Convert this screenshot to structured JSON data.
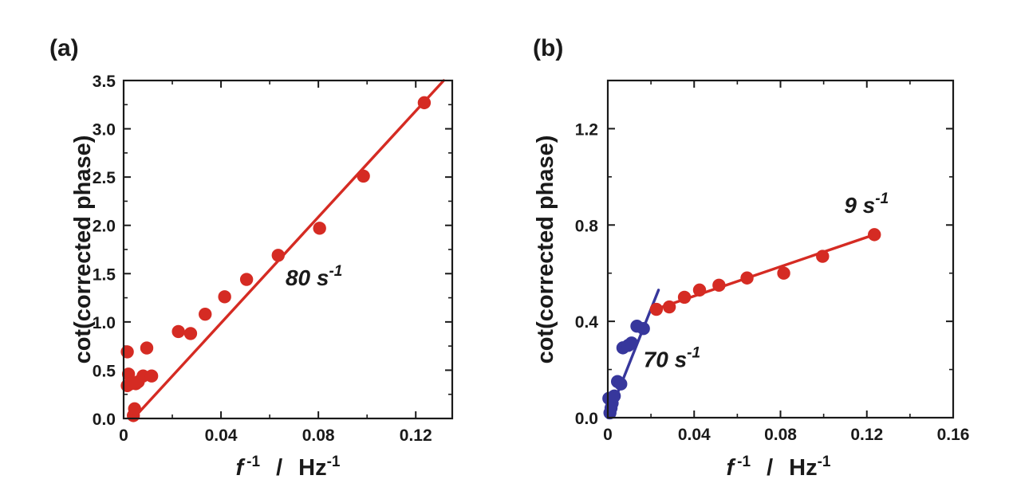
{
  "colors": {
    "red": "#d52b23",
    "blue": "#37379c",
    "axis": "#1a1a1a"
  },
  "chart_data": [
    {
      "type": "scatter",
      "panel_label": "(a)",
      "xlabel_main": "f",
      "xlabel_exp": "-1",
      "xlabel_sep": "/",
      "xlabel_unit": "Hz",
      "xlabel_unit_exp": "-1",
      "ylabel": "cot(corrected phase)",
      "xlim": [
        0,
        0.135
      ],
      "ylim": [
        0,
        3.5
      ],
      "xticks": [
        0,
        0.04,
        0.08,
        0.12
      ],
      "xtick_labels": [
        "0",
        "0.04",
        "0.08",
        "0.12"
      ],
      "yticks": [
        0,
        0.5,
        1.0,
        1.5,
        2.0,
        2.5,
        3.0,
        3.5
      ],
      "ytick_labels": [
        "0.0",
        "0.5",
        "1.0",
        "1.5",
        "2.0",
        "2.5",
        "3.0",
        "3.5"
      ],
      "series": [
        {
          "color": "#d52b23",
          "x": [
            0.0015,
            0.0015,
            0.002,
            0.003,
            0.004,
            0.0045,
            0.005,
            0.006,
            0.008,
            0.0095,
            0.0115,
            0.0225,
            0.0275,
            0.0335,
            0.0415,
            0.0505,
            0.0635,
            0.0805,
            0.0985,
            0.1235
          ],
          "y": [
            0.34,
            0.69,
            0.46,
            0.36,
            0.03,
            0.1,
            0.36,
            0.38,
            0.44,
            0.73,
            0.44,
            0.9,
            0.88,
            1.08,
            1.26,
            1.44,
            1.69,
            1.97,
            2.51,
            3.27
          ],
          "fit": {
            "x": [
              0.004,
              0.1315
            ],
            "y": [
              0.0,
              3.5
            ]
          }
        }
      ],
      "annotations": [
        {
          "text": "80 s",
          "sup": "-1",
          "x": 0.0665,
          "y": 1.38,
          "color": "#d52b23"
        }
      ]
    },
    {
      "type": "scatter",
      "panel_label": "(b)",
      "xlabel_main": "f",
      "xlabel_exp": "-1",
      "xlabel_sep": "/",
      "xlabel_unit": "Hz",
      "xlabel_unit_exp": "-1",
      "ylabel": "cot(corrected phase)",
      "xlim": [
        0,
        0.16
      ],
      "ylim": [
        0,
        1.4
      ],
      "xticks": [
        0,
        0.04,
        0.08,
        0.12,
        0.16
      ],
      "xtick_labels": [
        "0",
        "0.04",
        "0.08",
        "0.12",
        "0.16"
      ],
      "yticks": [
        0,
        0.4,
        0.8,
        1.2
      ],
      "ytick_labels": [
        "0.0",
        "0.4",
        "0.8",
        "1.2"
      ],
      "series": [
        {
          "color": "#d52b23",
          "x": [
            0.0225,
            0.0285,
            0.0355,
            0.0425,
            0.0515,
            0.0645,
            0.0815,
            0.0995,
            0.1235
          ],
          "y": [
            0.45,
            0.46,
            0.5,
            0.53,
            0.55,
            0.58,
            0.6,
            0.67,
            0.76
          ],
          "fit": {
            "x": [
              0.022,
              0.1235
            ],
            "y": [
              0.45,
              0.76
            ]
          }
        },
        {
          "color": "#37379c",
          "x": [
            0.0005,
            0.001,
            0.0015,
            0.002,
            0.003,
            0.0045,
            0.006,
            0.007,
            0.0095,
            0.011,
            0.0135,
            0.0165
          ],
          "y": [
            0.08,
            0.02,
            0.04,
            0.06,
            0.09,
            0.15,
            0.14,
            0.29,
            0.3,
            0.31,
            0.38,
            0.37
          ],
          "fit": {
            "x": [
              0.0,
              0.0235
            ],
            "y": [
              0.0,
              0.53
            ]
          }
        }
      ],
      "annotations": [
        {
          "text": "9 s",
          "sup": "-1",
          "x": 0.1095,
          "y": 0.85,
          "color": "#d52b23"
        },
        {
          "text": "70 s",
          "sup": "-1",
          "x": 0.0165,
          "y": 0.21,
          "color": "#37379c"
        }
      ]
    }
  ]
}
